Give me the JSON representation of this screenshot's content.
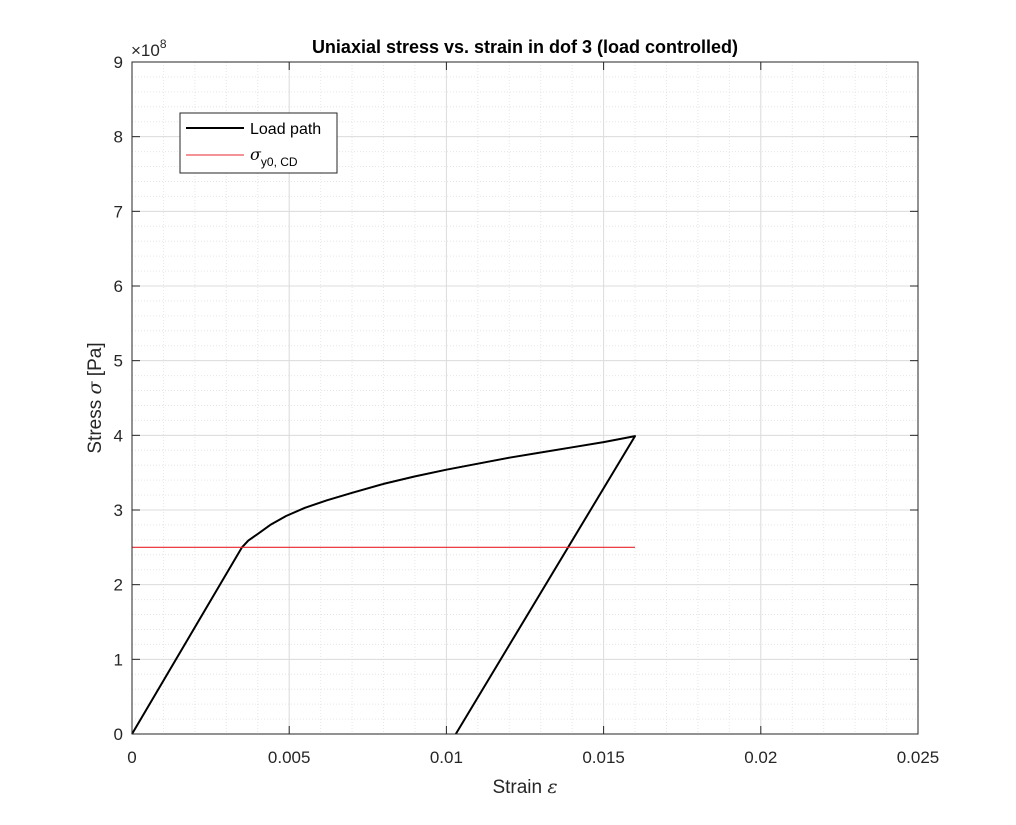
{
  "chart_data": {
    "type": "line",
    "title": "Uniaxial stress vs. strain in dof 3 (load controlled)",
    "xlabel": "Strain",
    "xlabel_symbol": "ε",
    "ylabel": "Stress",
    "ylabel_symbol": "σ",
    "ylabel_unit": "[Pa]",
    "y_exponent_label": "×10",
    "y_exponent": "8",
    "xlim": [
      0,
      0.025
    ],
    "ylim": [
      0,
      900000000
    ],
    "y_scale": 100000000,
    "x_ticks": [
      0,
      0.005,
      0.01,
      0.015,
      0.02,
      0.025
    ],
    "x_tick_labels": [
      "0",
      "0.005",
      "0.01",
      "0.015",
      "0.02",
      "0.025"
    ],
    "y_ticks": [
      0,
      1,
      2,
      3,
      4,
      5,
      6,
      7,
      8,
      9
    ],
    "y_tick_labels": [
      "0",
      "1",
      "2",
      "3",
      "4",
      "5",
      "6",
      "7",
      "8",
      "9"
    ],
    "grid": true,
    "minor_grid": true,
    "legend_position": "top-left",
    "series": [
      {
        "name": "Load path",
        "color": "#000000",
        "x": [
          0,
          0.0035,
          0.0037,
          0.004,
          0.0044,
          0.0049,
          0.0055,
          0.0062,
          0.007,
          0.008,
          0.009,
          0.01,
          0.011,
          0.012,
          0.013,
          0.014,
          0.015,
          0.016,
          0.0103
        ],
        "y": [
          0,
          250000000,
          259000000,
          268000000,
          280000000,
          292000000,
          303000000,
          313000000,
          323000000,
          335000000,
          345000000,
          354000000,
          362000000,
          370000000,
          377000000,
          384000000,
          391000000,
          399000000,
          0
        ]
      },
      {
        "name": "σ",
        "name_subscript": "y0, CD",
        "color": "#e8262c",
        "x": [
          0,
          0.016
        ],
        "y": [
          250000000,
          250000000
        ]
      }
    ]
  }
}
